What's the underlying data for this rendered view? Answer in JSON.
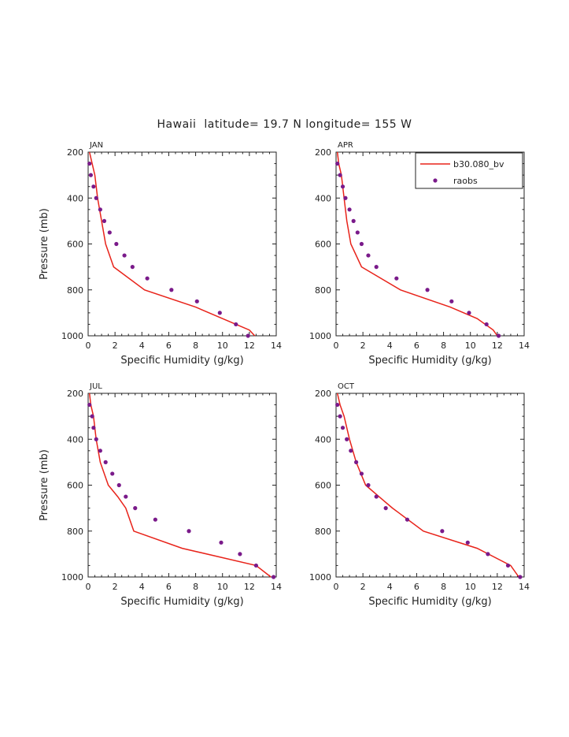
{
  "title": "Hawaii  latitude= 19.7 N longitude= 155 W",
  "legend": [
    {
      "label": "b30.080_bv",
      "kind": "line",
      "color": "#e8231a"
    },
    {
      "label": "raobs",
      "kind": "marker",
      "color": "#7a1a8a"
    }
  ],
  "chart_data": [
    {
      "type": "line",
      "panel_label": "JAN",
      "xlabel": "Specific Humidity (g/kg)",
      "ylabel": "Pressure (mb)",
      "xlim": [
        0,
        14
      ],
      "ylim": [
        1000,
        200
      ],
      "xticks": [
        0,
        2,
        4,
        6,
        8,
        10,
        12,
        14
      ],
      "yticks": [
        200,
        400,
        600,
        800,
        1000
      ],
      "series": [
        {
          "name": "b30.080_bv",
          "style": "line",
          "x": [
            0.1,
            0.3,
            0.5,
            0.7,
            1.0,
            1.3,
            1.9,
            4.2,
            8.0,
            11.0,
            12.0,
            12.4
          ],
          "y": [
            200,
            250,
            300,
            400,
            500,
            600,
            700,
            800,
            875,
            950,
            975,
            1000
          ]
        },
        {
          "name": "raobs",
          "style": "marker",
          "x": [
            0.1,
            0.2,
            0.4,
            0.6,
            0.9,
            1.2,
            1.6,
            2.1,
            2.7,
            3.3,
            4.4,
            6.2,
            8.1,
            9.8,
            11.0,
            11.9
          ],
          "y": [
            250,
            300,
            350,
            400,
            450,
            500,
            550,
            600,
            650,
            700,
            750,
            800,
            850,
            900,
            950,
            1000
          ]
        }
      ]
    },
    {
      "type": "line",
      "panel_label": "APR",
      "xlabel": "Specific Humidity (g/kg)",
      "ylabel": "",
      "xlim": [
        0,
        14
      ],
      "ylim": [
        1000,
        200
      ],
      "xticks": [
        0,
        2,
        4,
        6,
        8,
        10,
        12,
        14
      ],
      "yticks": [
        200,
        400,
        600,
        800,
        1000
      ],
      "series": [
        {
          "name": "b30.080_bv",
          "style": "line",
          "x": [
            0.1,
            0.2,
            0.4,
            0.6,
            0.8,
            1.1,
            1.9,
            4.8,
            8.5,
            10.5,
            11.7,
            12.0
          ],
          "y": [
            200,
            250,
            300,
            400,
            500,
            600,
            700,
            800,
            875,
            925,
            975,
            1000
          ]
        },
        {
          "name": "raobs",
          "style": "marker",
          "x": [
            0.1,
            0.3,
            0.5,
            0.7,
            1.0,
            1.3,
            1.6,
            1.9,
            2.4,
            3.0,
            4.5,
            6.8,
            8.6,
            9.9,
            11.2,
            12.1
          ],
          "y": [
            250,
            300,
            350,
            400,
            450,
            500,
            550,
            600,
            650,
            700,
            750,
            800,
            850,
            900,
            950,
            1000
          ]
        }
      ]
    },
    {
      "type": "line",
      "panel_label": "JUL",
      "xlabel": "Specific Humidity (g/kg)",
      "ylabel": "Pressure (mb)",
      "xlim": [
        0,
        14
      ],
      "ylim": [
        1000,
        200
      ],
      "xticks": [
        0,
        2,
        4,
        6,
        8,
        10,
        12,
        14
      ],
      "yticks": [
        200,
        400,
        600,
        800,
        1000
      ],
      "series": [
        {
          "name": "b30.080_bv",
          "style": "line",
          "x": [
            0.1,
            0.2,
            0.4,
            0.6,
            0.9,
            1.5,
            2.2,
            2.8,
            3.4,
            7.0,
            12.5,
            13.6
          ],
          "y": [
            200,
            250,
            300,
            400,
            500,
            600,
            650,
            700,
            800,
            875,
            950,
            1000
          ]
        },
        {
          "name": "raobs",
          "style": "marker",
          "x": [
            0.1,
            0.3,
            0.4,
            0.6,
            0.9,
            1.3,
            1.8,
            2.3,
            2.8,
            3.5,
            5.0,
            7.5,
            9.9,
            11.3,
            12.5,
            13.8
          ],
          "y": [
            250,
            300,
            350,
            400,
            450,
            500,
            550,
            600,
            650,
            700,
            750,
            800,
            850,
            900,
            950,
            1000
          ]
        }
      ]
    },
    {
      "type": "line",
      "panel_label": "OCT",
      "xlabel": "Specific Humidity (g/kg)",
      "ylabel": "",
      "xlim": [
        0,
        14
      ],
      "ylim": [
        1000,
        200
      ],
      "xticks": [
        0,
        2,
        4,
        6,
        8,
        10,
        12,
        14
      ],
      "yticks": [
        200,
        400,
        600,
        800,
        1000
      ],
      "series": [
        {
          "name": "b30.080_bv",
          "style": "line",
          "x": [
            0.1,
            0.3,
            0.6,
            1.0,
            1.5,
            2.2,
            3.2,
            4.2,
            6.5,
            10.5,
            13.0,
            13.6
          ],
          "y": [
            200,
            250,
            300,
            400,
            500,
            600,
            650,
            700,
            800,
            875,
            950,
            1000
          ]
        },
        {
          "name": "raobs",
          "style": "marker",
          "x": [
            0.1,
            0.3,
            0.5,
            0.8,
            1.1,
            1.5,
            1.9,
            2.4,
            3.0,
            3.7,
            5.3,
            7.9,
            9.8,
            11.3,
            12.8,
            13.7
          ],
          "y": [
            250,
            300,
            350,
            400,
            450,
            500,
            550,
            600,
            650,
            700,
            750,
            800,
            850,
            900,
            950,
            1000
          ]
        }
      ]
    }
  ]
}
